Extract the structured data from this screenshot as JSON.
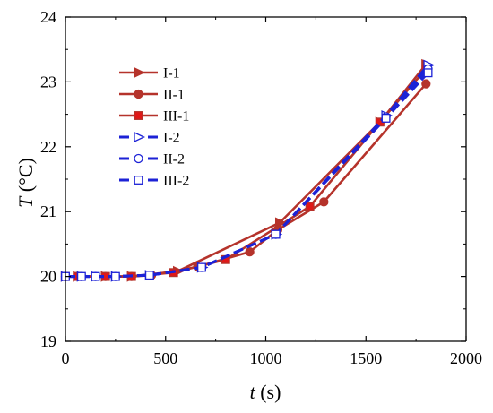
{
  "chart_data": {
    "type": "line",
    "title": "",
    "xlabel": {
      "var": "t",
      "unit": " (s)"
    },
    "ylabel": {
      "var": "T",
      "unit": " (°C)"
    },
    "xlim": [
      0,
      2000
    ],
    "ylim": [
      19,
      24
    ],
    "xticks": [
      0,
      500,
      1000,
      1500,
      2000
    ],
    "yticks": [
      19,
      20,
      21,
      22,
      23,
      24
    ],
    "grid": false,
    "legend_position": "top-left",
    "series": [
      {
        "name": "I-1",
        "color": "#b5332b",
        "dash": "solid",
        "marker": "triangle-right",
        "marker_fill": "#b5332b",
        "x": [
          0,
          60,
          200,
          330,
          560,
          1070,
          1570,
          1800
        ],
        "y": [
          20.0,
          20.0,
          20.0,
          20.0,
          20.08,
          20.83,
          22.38,
          23.27
        ]
      },
      {
        "name": "II-1",
        "color": "#b5332b",
        "dash": "solid",
        "marker": "circle",
        "marker_fill": "#b5332b",
        "x": [
          0,
          60,
          200,
          330,
          430,
          660,
          920,
          1060,
          1290,
          1800
        ],
        "y": [
          20.0,
          20.0,
          20.0,
          20.0,
          20.02,
          20.15,
          20.38,
          20.72,
          21.15,
          22.97
        ]
      },
      {
        "name": "III-1",
        "color": "#b5332b",
        "dash": "solid",
        "marker": "square",
        "marker_fill": "#e01818",
        "x": [
          0,
          60,
          200,
          330,
          540,
          800,
          1220,
          1570,
          1800
        ],
        "y": [
          20.0,
          20.0,
          20.0,
          20.0,
          20.06,
          20.26,
          21.08,
          22.38,
          23.2
        ]
      },
      {
        "name": "I-2",
        "color": "#1c22d6",
        "dash": "dashed",
        "marker": "triangle-right",
        "marker_fill": "#ffffff",
        "x": [
          0,
          80,
          150,
          250,
          420,
          680,
          1050,
          1600,
          1810
        ],
        "y": [
          20.0,
          20.0,
          20.0,
          20.0,
          20.02,
          20.14,
          20.65,
          22.48,
          23.26
        ]
      },
      {
        "name": "II-2",
        "color": "#1c22d6",
        "dash": "dashed",
        "marker": "circle",
        "marker_fill": "#ffffff",
        "x": [
          0,
          80,
          150,
          250,
          420,
          680,
          1050,
          1600,
          1810
        ],
        "y": [
          20.0,
          20.0,
          20.0,
          20.0,
          20.02,
          20.14,
          20.65,
          22.46,
          23.2
        ]
      },
      {
        "name": "III-2",
        "color": "#1c22d6",
        "dash": "dashed",
        "marker": "square",
        "marker_fill": "#ffffff",
        "x": [
          0,
          80,
          150,
          250,
          420,
          680,
          1050,
          1600,
          1810
        ],
        "y": [
          20.0,
          20.0,
          20.0,
          20.0,
          20.02,
          20.14,
          20.65,
          22.44,
          23.14
        ]
      }
    ]
  }
}
